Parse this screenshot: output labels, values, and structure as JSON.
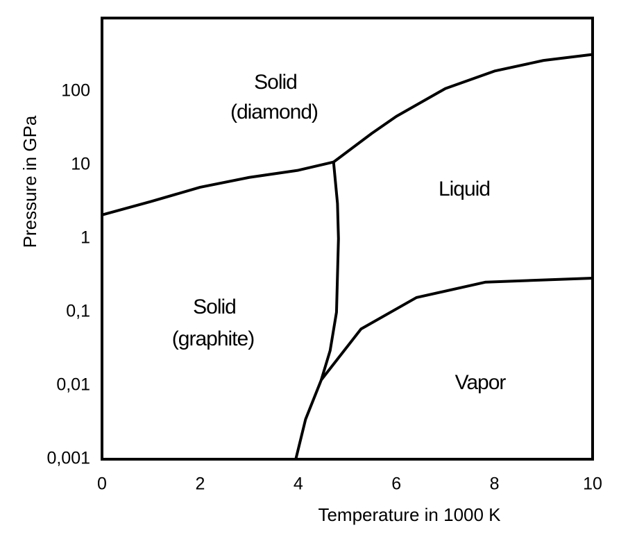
{
  "chart_data": {
    "type": "line",
    "x_label": "Temperature in 1000 K",
    "y_label": "Pressure in GPa",
    "xlim": [
      0,
      10
    ],
    "xticks": [
      0,
      2,
      4,
      6,
      8,
      10
    ],
    "ylim": [
      0.001,
      1000
    ],
    "yscale": "log",
    "yticks": [
      {
        "value": 0.001,
        "label": "0,001"
      },
      {
        "value": 0.01,
        "label": "0,01"
      },
      {
        "value": 0.1,
        "label": "0,1"
      },
      1,
      10,
      100
    ],
    "series": [
      {
        "color": "#000000",
        "x": [
          0,
          1,
          2,
          3,
          4,
          4.72
        ],
        "values": [
          2.1,
          3.2,
          5,
          6.8,
          8.5,
          11
        ]
      },
      {
        "color": "#000000",
        "x": [
          4.72,
          5.5,
          6,
          7,
          8,
          9,
          10
        ],
        "values": [
          11,
          27,
          46,
          110,
          190,
          265,
          320
        ]
      },
      {
        "color": "#000000",
        "x": [
          4.72,
          4.8,
          4.82,
          4.78,
          4.65,
          4.47
        ],
        "values": [
          11,
          3,
          1,
          0.1,
          0.03,
          0.012
        ]
      },
      {
        "color": "#000000",
        "x": [
          3.95,
          4.15,
          4.47,
          5.28,
          6.41,
          7.82,
          10
        ],
        "values": [
          0.001,
          0.0035,
          0.012,
          0.059,
          0.158,
          0.256,
          0.29
        ]
      }
    ],
    "annotations": [
      "Solid",
      "(diamond)",
      "Liquid",
      "Solid",
      "(graphite)",
      "Vapor"
    ]
  }
}
